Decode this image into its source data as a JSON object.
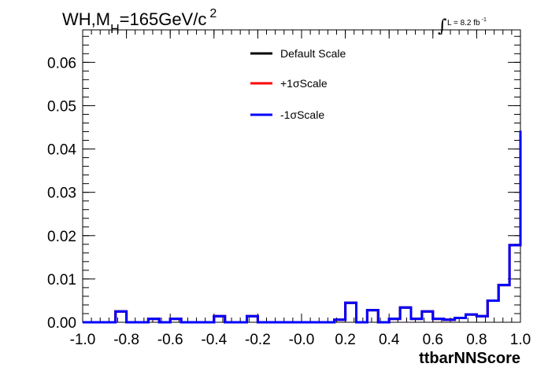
{
  "chart_data": {
    "type": "line",
    "title_parts": {
      "a": "WH,M",
      "sub": "H",
      "b": "=165GeV/c",
      "sup": "2"
    },
    "lumi_parts": {
      "integral": "∫",
      "text": "L = 8.2 fb",
      "sup": "-1"
    },
    "xlabel": "ttbarNNScore",
    "ylabel": "",
    "xlim": [
      -1.0,
      1.0
    ],
    "ylim": [
      0.0,
      0.0675
    ],
    "x_ticks": [
      "-1.0",
      "-0.8",
      "-0.6",
      "-0.4",
      "-0.2",
      "-0.0",
      "0.2",
      "0.4",
      "0.6",
      "0.8",
      "1.0"
    ],
    "y_ticks": [
      "0.00",
      "0.01",
      "0.02",
      "0.03",
      "0.04",
      "0.05",
      "0.06"
    ],
    "bins": {
      "edges_start": -1.0,
      "edges_width": 0.05
    },
    "legend": {
      "placement": "top-center",
      "entries": [
        {
          "label": "Default Scale",
          "color": "#000000"
        },
        {
          "label": "+1σScale",
          "color": "#ff0000"
        },
        {
          "label": "-1σScale",
          "color": "#0000ff"
        }
      ]
    },
    "series": [
      {
        "name": "Default Scale",
        "color": "#000000",
        "values": [
          0.0,
          0.0,
          0.0,
          0.0025,
          0.0,
          0.0,
          0.0008,
          0.0,
          0.0008,
          0.0,
          0.0,
          0.0,
          0.0014,
          0.0,
          0.0,
          0.0014,
          0.0,
          0.0,
          0.0,
          0.0,
          0.0,
          0.0,
          0.0,
          0.0006,
          0.0045,
          0.0,
          0.0028,
          0.0,
          0.0008,
          0.0034,
          0.0008,
          0.0025,
          0.0008,
          0.0006,
          0.001,
          0.0018,
          0.0014,
          0.005,
          0.0086,
          0.0178,
          0.0442
        ]
      },
      {
        "name": "+1σScale",
        "color": "#ff0000",
        "values": [
          0.0,
          0.0,
          0.0,
          0.0025,
          0.0,
          0.0,
          0.0008,
          0.0,
          0.0008,
          0.0,
          0.0,
          0.0,
          0.0014,
          0.0,
          0.0,
          0.0014,
          0.0,
          0.0,
          0.0,
          0.0,
          0.0,
          0.0,
          0.0,
          0.0006,
          0.0045,
          0.0,
          0.0028,
          0.0,
          0.0008,
          0.0034,
          0.0008,
          0.0025,
          0.0008,
          0.0006,
          0.001,
          0.0018,
          0.0014,
          0.005,
          0.0086,
          0.0178,
          0.0442
        ]
      },
      {
        "name": "-1σScale",
        "color": "#0000ff",
        "values": [
          0.0,
          0.0,
          0.0,
          0.0025,
          0.0,
          0.0,
          0.0008,
          0.0,
          0.0008,
          0.0,
          0.0,
          0.0,
          0.0014,
          0.0,
          0.0,
          0.0014,
          0.0,
          0.0,
          0.0,
          0.0,
          0.0,
          0.0,
          0.0,
          0.0006,
          0.0045,
          0.0,
          0.0028,
          0.0,
          0.0008,
          0.0034,
          0.0008,
          0.0025,
          0.0008,
          0.0006,
          0.001,
          0.0018,
          0.0014,
          0.005,
          0.0086,
          0.0178,
          0.0442
        ]
      }
    ]
  }
}
